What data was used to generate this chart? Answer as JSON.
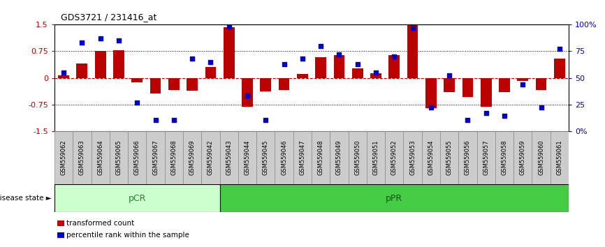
{
  "title": "GDS3721 / 231416_at",
  "samples": [
    "GSM559062",
    "GSM559063",
    "GSM559064",
    "GSM559065",
    "GSM559066",
    "GSM559067",
    "GSM559068",
    "GSM559069",
    "GSM559042",
    "GSM559043",
    "GSM559044",
    "GSM559045",
    "GSM559046",
    "GSM559047",
    "GSM559048",
    "GSM559049",
    "GSM559050",
    "GSM559051",
    "GSM559052",
    "GSM559053",
    "GSM559054",
    "GSM559055",
    "GSM559056",
    "GSM559057",
    "GSM559058",
    "GSM559059",
    "GSM559060",
    "GSM559061"
  ],
  "bar_values": [
    0.07,
    0.4,
    0.75,
    0.78,
    -0.12,
    -0.45,
    -0.35,
    -0.37,
    0.3,
    1.43,
    -0.82,
    -0.38,
    -0.35,
    0.1,
    0.58,
    0.65,
    0.27,
    0.12,
    0.65,
    1.5,
    -0.85,
    -0.4,
    -0.55,
    -0.82,
    -0.4,
    -0.08,
    -0.35,
    0.55
  ],
  "percentile_values": [
    55,
    83,
    87,
    85,
    27,
    10,
    10,
    68,
    65,
    98,
    33,
    10,
    63,
    68,
    80,
    72,
    63,
    55,
    70,
    97,
    22,
    52,
    10,
    17,
    14,
    44,
    22,
    77
  ],
  "pCR_count": 9,
  "pPR_count": 19,
  "bar_color": "#bb0000",
  "dot_color": "#0000cc",
  "zero_line_color": "#cc0000",
  "dot_line_color": "#888888",
  "pCR_color": "#ccffcc",
  "pPR_color": "#44cc44",
  "pCR_text_color": "#228822",
  "pPR_text_color": "#115511",
  "ylim": [
    -1.5,
    1.5
  ],
  "yticks_left": [
    -1.5,
    -0.75,
    0.0,
    0.75,
    1.5
  ],
  "ytick_labels_left": [
    "-1.5",
    "-0.75",
    "0",
    "0.75",
    "1.5"
  ],
  "right_pct_ticks": [
    0,
    25,
    50,
    75,
    100
  ],
  "right_pct_labels": [
    "0%",
    "25",
    "50",
    "75",
    "100%"
  ],
  "bar_color_legend": "#cc0000",
  "dot_color_legend": "#0000cc",
  "legend_bar_label": "transformed count",
  "legend_dot_label": "percentile rank within the sample",
  "disease_state_label": "disease state",
  "pCR_label": "pCR",
  "pPR_label": "pPR",
  "tick_label_bg": "#cccccc",
  "tick_label_border": "#888888"
}
